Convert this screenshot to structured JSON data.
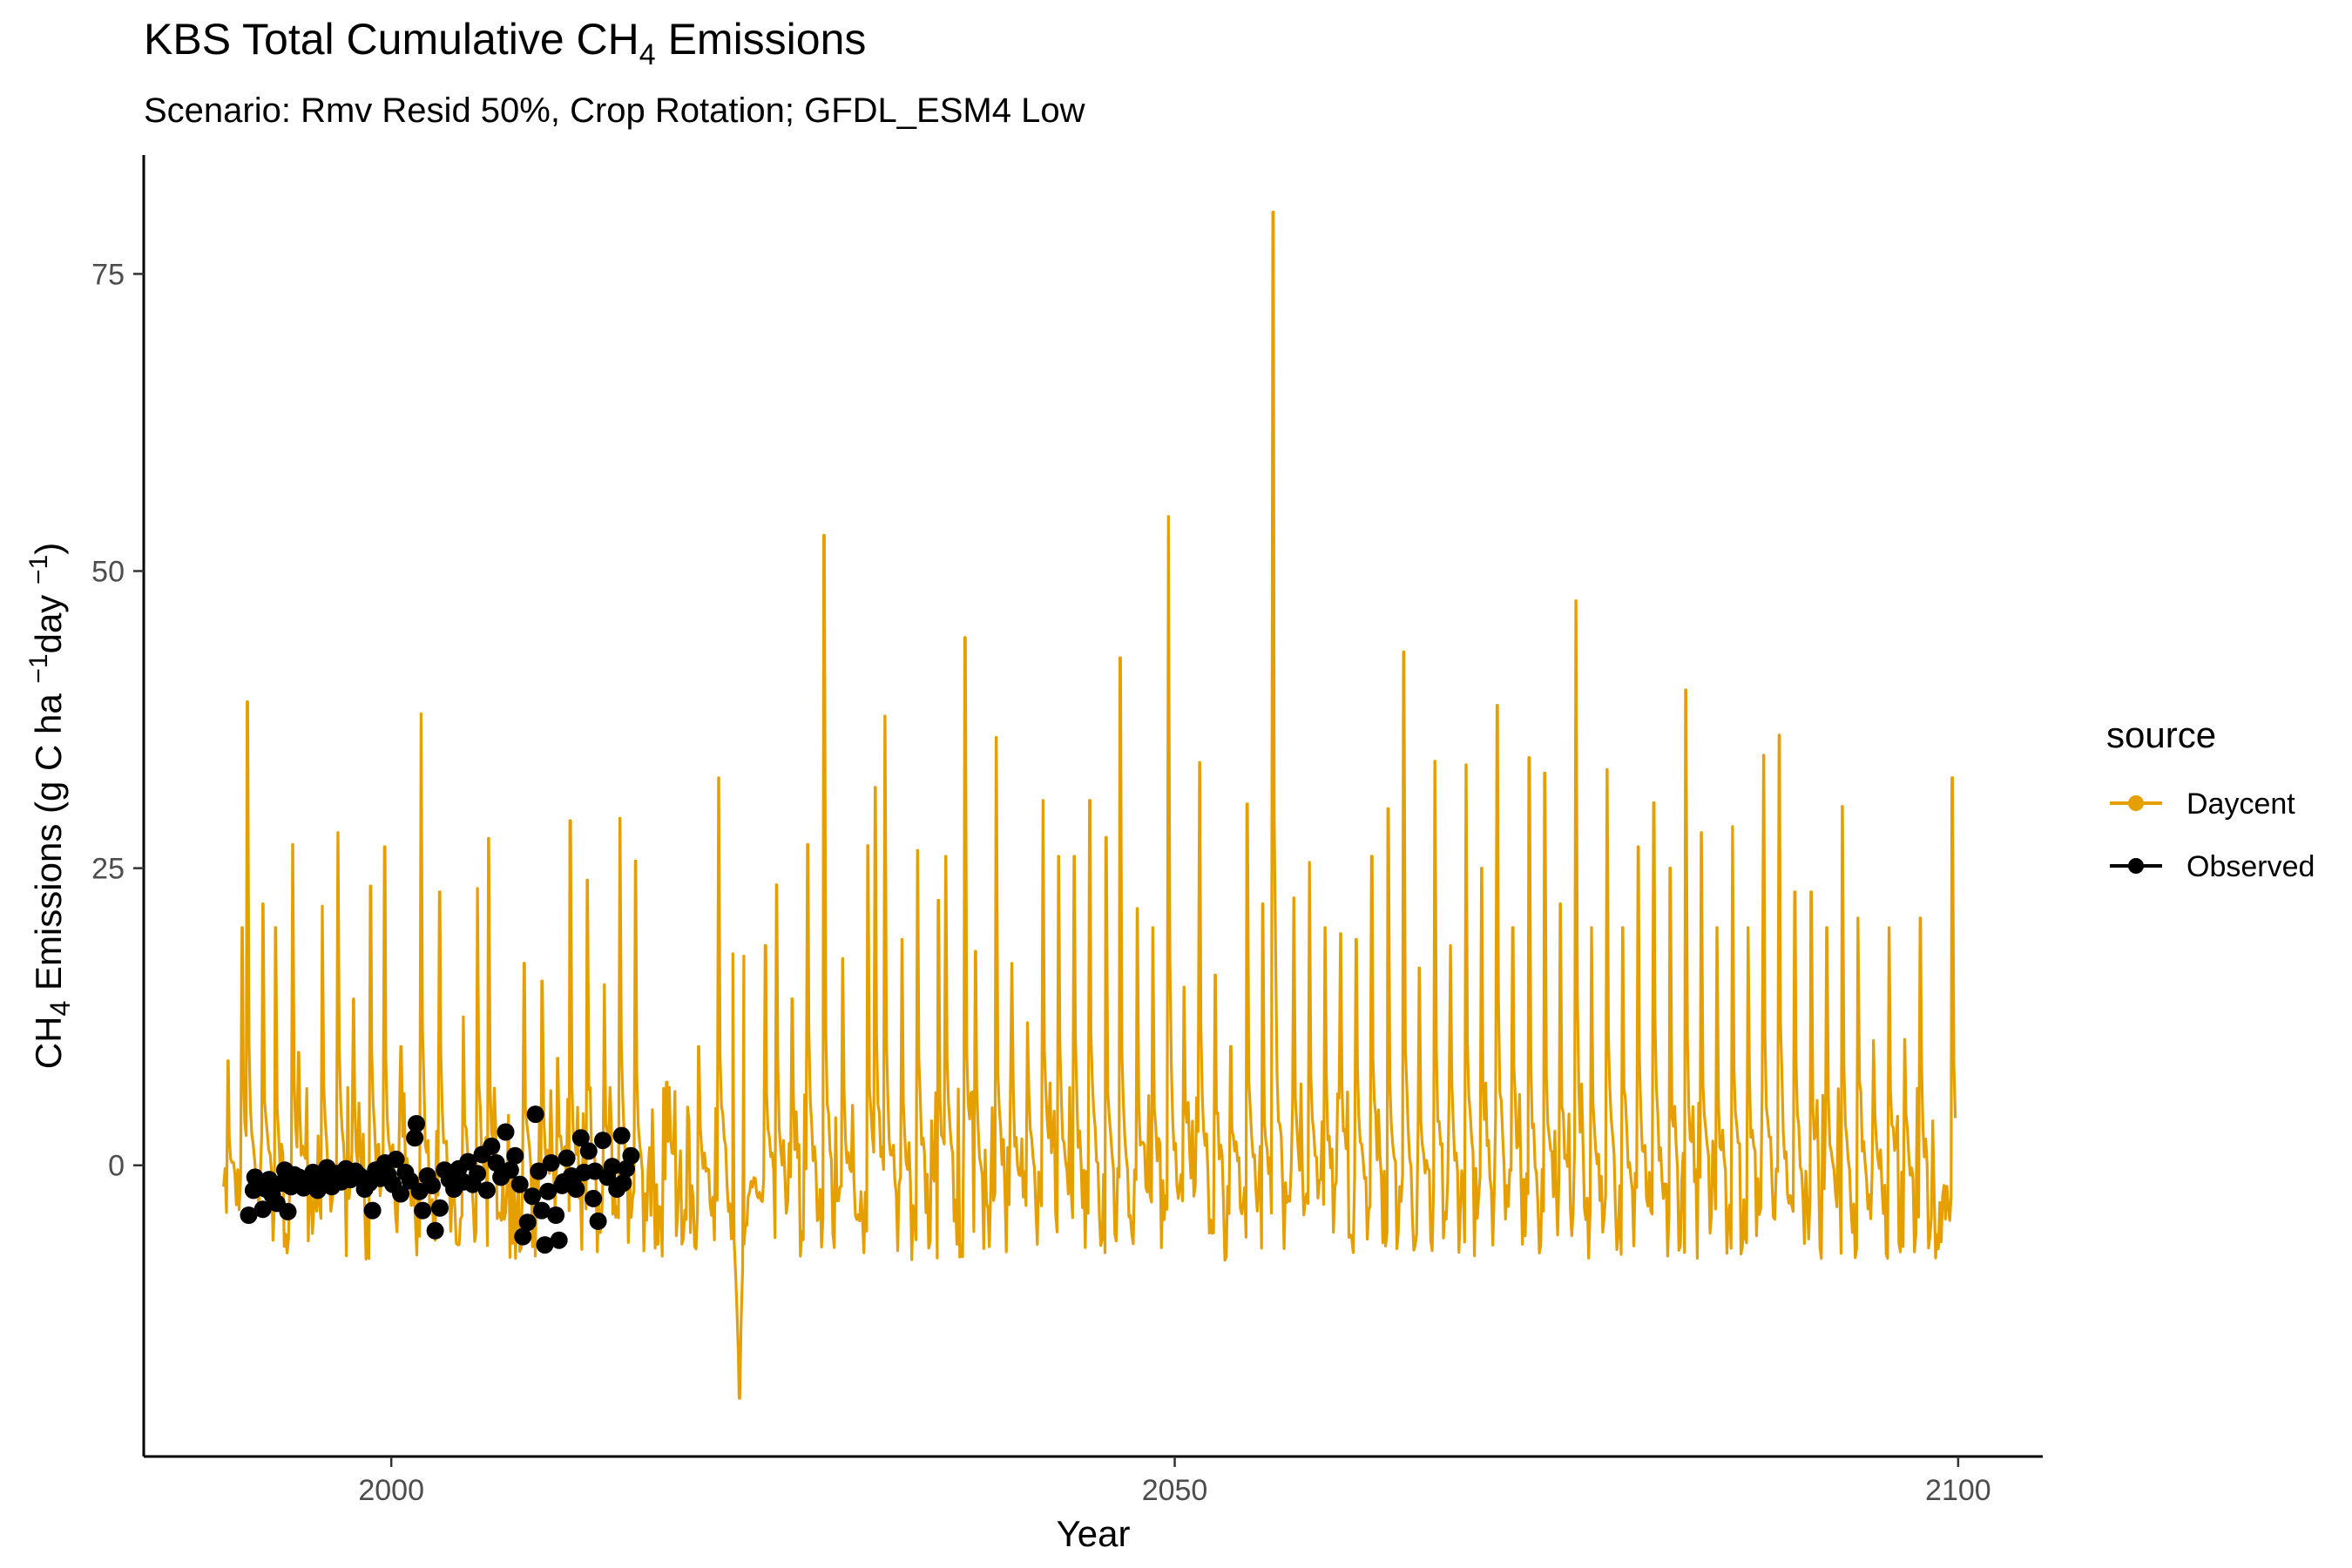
{
  "chart_data": {
    "type": "line",
    "title": {
      "text": "KBS Total Cumulative CH",
      "sub": "4",
      "tail": " Emissions"
    },
    "subtitle": "Scenario: Rmv Resid 50%, Crop Rotation; GFDL_ESM4 Low",
    "xlabel": "Year",
    "ylabel": {
      "pre": "CH",
      "sub4": "4",
      "mid": " Emissions (g C ha ",
      "sup1": "−1",
      "mid2": "day ",
      "sup2": "−1",
      "post": ")"
    },
    "xlim": [
      1984.2,
      2105.4
    ],
    "ylim": [
      -24.5,
      85.0
    ],
    "x_ticks": [
      2000,
      2050,
      2100
    ],
    "y_ticks": [
      0,
      25,
      50,
      75
    ],
    "grid": false,
    "legend": {
      "title": "source",
      "position": "right",
      "entries": [
        {
          "label": "Daycent",
          "color": "#E69F00"
        },
        {
          "label": "Observed",
          "color": "#000000"
        }
      ]
    },
    "series": [
      {
        "name": "Daycent",
        "color": "#E69F00",
        "baseline": -2.5,
        "trough": -8,
        "spikes": [
          [
            1989.6,
            8.8
          ],
          [
            1990.5,
            20
          ],
          [
            1990.8,
            39
          ],
          [
            1991.8,
            22
          ],
          [
            1992.6,
            20
          ],
          [
            1993.7,
            27
          ],
          [
            1994.1,
            9.5
          ],
          [
            1995.6,
            21.8
          ],
          [
            1996.6,
            28
          ],
          [
            1997.6,
            14
          ],
          [
            1998.7,
            23.5
          ],
          [
            1999.6,
            26.8
          ],
          [
            2000.6,
            10
          ],
          [
            2001.9,
            38
          ],
          [
            2003.1,
            23
          ],
          [
            2004.6,
            12.5
          ],
          [
            2005.5,
            23.3
          ],
          [
            2006.2,
            27.5
          ],
          [
            2008.5,
            17
          ],
          [
            2009.6,
            15.5
          ],
          [
            2010.6,
            9
          ],
          [
            2011.4,
            29
          ],
          [
            2012.5,
            24
          ],
          [
            2013.6,
            15.2
          ],
          [
            2014.6,
            29.2
          ],
          [
            2015.6,
            25.6
          ],
          [
            2017.6,
            7
          ],
          [
            2019.6,
            10
          ],
          [
            2020.9,
            32.6
          ],
          [
            2021.8,
            17.8
          ],
          [
            2022.5,
            17.6
          ],
          [
            2023.9,
            18.5
          ],
          [
            2024.6,
            23.6
          ],
          [
            2025.6,
            14
          ],
          [
            2026.6,
            27
          ],
          [
            2027.6,
            53
          ],
          [
            2028.8,
            17.4
          ],
          [
            2030.4,
            26.9
          ],
          [
            2030.9,
            31.8
          ],
          [
            2031.5,
            37.8
          ],
          [
            2032.6,
            19
          ],
          [
            2033.6,
            26.5
          ],
          [
            2034.9,
            22.3
          ],
          [
            2035.4,
            26
          ],
          [
            2036.6,
            44.4
          ],
          [
            2037.3,
            18
          ],
          [
            2038.6,
            36
          ],
          [
            2039.6,
            17
          ],
          [
            2040.6,
            12
          ],
          [
            2041.6,
            30.7
          ],
          [
            2042.6,
            26
          ],
          [
            2043.6,
            26
          ],
          [
            2044.6,
            30.7
          ],
          [
            2045.6,
            27.6
          ],
          [
            2046.5,
            42.7
          ],
          [
            2047.6,
            21.6
          ],
          [
            2048.6,
            20
          ],
          [
            2049.6,
            54.6
          ],
          [
            2050.6,
            15
          ],
          [
            2051.6,
            33.9
          ],
          [
            2052.6,
            16
          ],
          [
            2053.6,
            10
          ],
          [
            2054.6,
            30.4
          ],
          [
            2055.6,
            22
          ],
          [
            2056.3,
            80.2
          ],
          [
            2057.6,
            22.5
          ],
          [
            2058.6,
            25.5
          ],
          [
            2059.6,
            20
          ],
          [
            2060.6,
            19.5
          ],
          [
            2061.6,
            19
          ],
          [
            2062.6,
            26
          ],
          [
            2063.6,
            30
          ],
          [
            2064.6,
            43.2
          ],
          [
            2065.6,
            16.6
          ],
          [
            2066.6,
            34
          ],
          [
            2067.6,
            18.5
          ],
          [
            2068.6,
            33.7
          ],
          [
            2069.6,
            25
          ],
          [
            2070.6,
            38.7
          ],
          [
            2071.6,
            20
          ],
          [
            2072.6,
            34.3
          ],
          [
            2073.6,
            33
          ],
          [
            2074.6,
            22
          ],
          [
            2075.6,
            47.5
          ],
          [
            2076.6,
            20
          ],
          [
            2077.6,
            33.3
          ],
          [
            2078.6,
            20
          ],
          [
            2079.6,
            26.8
          ],
          [
            2080.6,
            30.5
          ],
          [
            2081.6,
            25
          ],
          [
            2082.6,
            40
          ],
          [
            2083.6,
            28
          ],
          [
            2084.6,
            20
          ],
          [
            2085.6,
            28.5
          ],
          [
            2086.6,
            20
          ],
          [
            2087.6,
            34.5
          ],
          [
            2088.6,
            36.2
          ],
          [
            2089.6,
            23
          ],
          [
            2090.6,
            23
          ],
          [
            2091.6,
            20
          ],
          [
            2092.6,
            30.2
          ],
          [
            2093.6,
            20.8
          ],
          [
            2094.6,
            10.5
          ],
          [
            2095.6,
            20
          ],
          [
            2096.6,
            10.6
          ],
          [
            2097.6,
            20.8
          ],
          [
            2099.6,
            32.6
          ]
        ],
        "dip": {
          "x": 2022.2,
          "y": -19.6
        }
      },
      {
        "name": "Observed",
        "color": "#000000",
        "points": [
          [
            1990.9,
            -4.2
          ],
          [
            1991.2,
            -2.1
          ],
          [
            1991.3,
            -1.0
          ],
          [
            1991.8,
            -3.7
          ],
          [
            1992.0,
            -2.0
          ],
          [
            1992.2,
            -1.2
          ],
          [
            1992.4,
            -2.5
          ],
          [
            1992.7,
            -3.2
          ],
          [
            1993.0,
            -1.5
          ],
          [
            1993.2,
            -0.4
          ],
          [
            1993.4,
            -3.9
          ],
          [
            1993.6,
            -1.8
          ],
          [
            1993.8,
            -0.8
          ],
          [
            1994.1,
            -1.0
          ],
          [
            1994.4,
            -1.9
          ],
          [
            1994.7,
            -1.2
          ],
          [
            1995.0,
            -0.6
          ],
          [
            1995.3,
            -2.1
          ],
          [
            1995.6,
            -1.0
          ],
          [
            1995.9,
            -0.2
          ],
          [
            1996.2,
            -1.8
          ],
          [
            1996.5,
            -0.7
          ],
          [
            1996.8,
            -1.4
          ],
          [
            1997.1,
            -0.3
          ],
          [
            1997.4,
            -1.2
          ],
          [
            1997.7,
            -0.5
          ],
          [
            1998.0,
            -0.9
          ],
          [
            1998.3,
            -2.0
          ],
          [
            1998.6,
            -1.5
          ],
          [
            1998.8,
            -3.8
          ],
          [
            1999.0,
            -0.4
          ],
          [
            1999.3,
            -1.1
          ],
          [
            1999.6,
            0.2
          ],
          [
            1999.8,
            -0.8
          ],
          [
            2000.1,
            -1.6
          ],
          [
            2000.3,
            0.5
          ],
          [
            2000.6,
            -2.4
          ],
          [
            2000.9,
            -0.6
          ],
          [
            2001.2,
            -1.3
          ],
          [
            2001.5,
            2.3
          ],
          [
            2001.6,
            3.5
          ],
          [
            2001.8,
            -2.2
          ],
          [
            2002.0,
            -3.8
          ],
          [
            2002.3,
            -0.9
          ],
          [
            2002.6,
            -1.7
          ],
          [
            2002.8,
            -5.5
          ],
          [
            2003.1,
            -3.6
          ],
          [
            2003.4,
            -0.4
          ],
          [
            2003.7,
            -1.2
          ],
          [
            2004.0,
            -2.0
          ],
          [
            2004.3,
            -0.3
          ],
          [
            2004.6,
            -1.4
          ],
          [
            2004.9,
            0.3
          ],
          [
            2005.2,
            -1.6
          ],
          [
            2005.5,
            -0.7
          ],
          [
            2005.8,
            0.9
          ],
          [
            2006.1,
            -2.1
          ],
          [
            2006.4,
            1.6
          ],
          [
            2006.7,
            0.2
          ],
          [
            2007.0,
            -1.0
          ],
          [
            2007.3,
            2.8
          ],
          [
            2007.6,
            -0.4
          ],
          [
            2007.9,
            0.8
          ],
          [
            2008.2,
            -1.6
          ],
          [
            2008.4,
            -6.0
          ],
          [
            2008.7,
            -4.8
          ],
          [
            2009.0,
            -2.6
          ],
          [
            2009.2,
            4.3
          ],
          [
            2009.4,
            -0.5
          ],
          [
            2009.6,
            -3.8
          ],
          [
            2009.8,
            -6.7
          ],
          [
            2010.0,
            -2.2
          ],
          [
            2010.2,
            0.2
          ],
          [
            2010.5,
            -4.2
          ],
          [
            2010.7,
            -6.3
          ],
          [
            2011.0,
            -1.4
          ],
          [
            2011.2,
            0.6
          ],
          [
            2011.5,
            -0.9
          ],
          [
            2011.8,
            -2.0
          ],
          [
            2012.1,
            2.3
          ],
          [
            2012.3,
            -0.6
          ],
          [
            2012.6,
            1.2
          ],
          [
            2012.9,
            -2.8
          ],
          [
            2013.2,
            -4.7
          ],
          [
            2013.5,
            2.1
          ],
          [
            2013.8,
            -1.0
          ],
          [
            2014.1,
            -0.1
          ],
          [
            2014.4,
            -2.0
          ],
          [
            2014.7,
            2.5
          ],
          [
            2015.0,
            -0.3
          ],
          [
            2015.3,
            0.8
          ],
          [
            2014.8,
            -1.5
          ],
          [
            2013.0,
            -0.5
          ],
          [
            2011.6,
            -1.2
          ],
          [
            2010.9,
            -1.7
          ]
        ]
      }
    ]
  }
}
